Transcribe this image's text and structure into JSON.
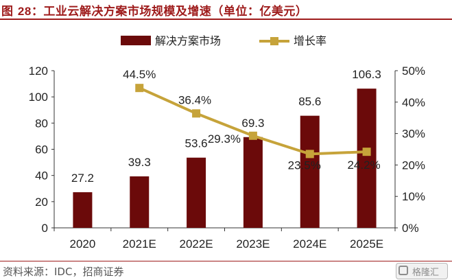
{
  "figure": {
    "title_prefix": "图",
    "title_number": "28",
    "title_text": "：工业云解决方案市场规模及增速（单位：亿美元）",
    "source": "资料来源：IDC，招商证券",
    "watermark": "格隆汇"
  },
  "chart_data": {
    "type": "bar",
    "categories": [
      "2020",
      "2021E",
      "2022E",
      "2023E",
      "2024E",
      "2025E"
    ],
    "series": [
      {
        "name": "解决方案市场",
        "type": "bar",
        "axis": "left",
        "color": "#6b0a0a",
        "values": [
          27.2,
          39.3,
          53.6,
          69.3,
          85.6,
          106.3
        ],
        "labels": [
          "27.2",
          "39.3",
          "53.6",
          "69.3",
          "85.6",
          "106.3"
        ]
      },
      {
        "name": "增长率",
        "type": "line",
        "axis": "right",
        "color": "#c6a33a",
        "values": [
          null,
          44.5,
          36.4,
          29.3,
          23.5,
          24.2
        ],
        "labels": [
          "",
          "44.5%",
          "36.4%",
          "29.3%",
          "23.5%",
          "24.2%"
        ]
      }
    ],
    "ylim": [
      0,
      120
    ],
    "y_ticks": [
      "0",
      "20",
      "40",
      "60",
      "80",
      "100",
      "120"
    ],
    "y2lim": [
      0,
      50
    ],
    "y2_ticks": [
      "0%",
      "10%",
      "20%",
      "30%",
      "40%",
      "50%"
    ],
    "legend_position": "top-center",
    "grid": false
  }
}
